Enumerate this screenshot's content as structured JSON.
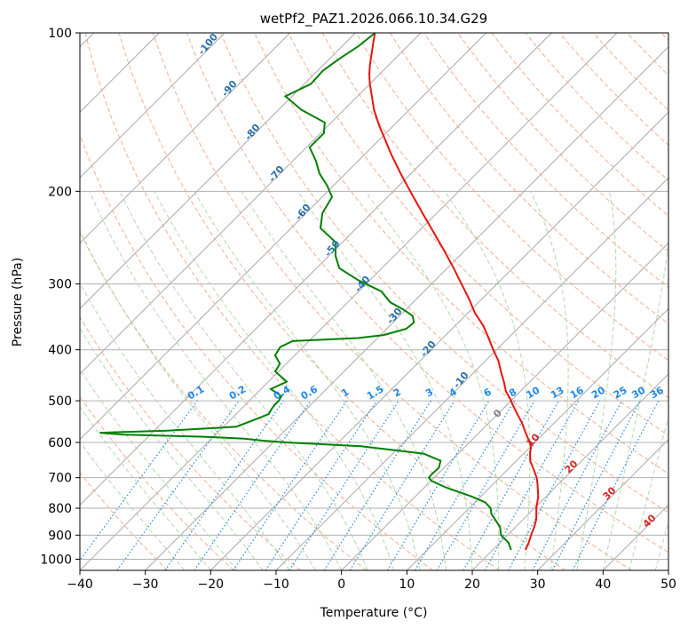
{
  "chart_data": {
    "type": "line",
    "title": "wetPf2_PAZ1.2026.066.10.34.G29",
    "xlabel": "Temperature (°C)",
    "ylabel": "Pressure (hPa)",
    "xlim": [
      -40,
      50
    ],
    "ylim": [
      1050,
      100
    ],
    "y_scale": "log",
    "x_ticks": [
      -40,
      -30,
      -20,
      -10,
      0,
      10,
      20,
      30,
      40,
      50
    ],
    "x_tick_labels": [
      "−40",
      "−30",
      "−20",
      "−10",
      "0",
      "10",
      "20",
      "30",
      "40",
      "50"
    ],
    "y_ticks": [
      100,
      200,
      300,
      400,
      500,
      600,
      700,
      800,
      900,
      1000
    ],
    "y_tick_labels": [
      "100",
      "200",
      "300",
      "400",
      "500",
      "600",
      "700",
      "800",
      "900",
      "1000"
    ],
    "grid": true,
    "skew_deg": 45,
    "series": [
      {
        "color": "#e8140c",
        "pressure": [
          960,
          930,
          900,
          870,
          840,
          800,
          760,
          720,
          700,
          680,
          650,
          630,
          610,
          590,
          570,
          550,
          530,
          510,
          495,
          480,
          460,
          440,
          420,
          400,
          380,
          360,
          340,
          320,
          300,
          280,
          260,
          240,
          220,
          200,
          185,
          170,
          160,
          150,
          140,
          130,
          125,
          120,
          115,
          110,
          105,
          100
        ],
        "temperature": [
          25.0,
          24.4,
          23.6,
          22.9,
          22.0,
          20.3,
          18.8,
          16.8,
          15.7,
          14.3,
          12.1,
          11.0,
          10.0,
          8.4,
          6.7,
          5.0,
          3.0,
          1.0,
          -0.5,
          -2.2,
          -4.0,
          -6.0,
          -8.0,
          -10.5,
          -13.0,
          -15.7,
          -19.0,
          -22.0,
          -25.4,
          -29.0,
          -33.0,
          -37.4,
          -42.2,
          -47.4,
          -51.6,
          -56.0,
          -59.0,
          -62.2,
          -65.4,
          -68.4,
          -70.0,
          -71.5,
          -72.9,
          -74.2,
          -75.6,
          -77.0
        ]
      },
      {
        "color": "#008000",
        "pressure": [
          960,
          930,
          900,
          870,
          840,
          820,
          800,
          780,
          760,
          730,
          710,
          700,
          690,
          670,
          650,
          630,
          610,
          600,
          595,
          590,
          585,
          580,
          575,
          570,
          560,
          550,
          540,
          530,
          520,
          510,
          500,
          490,
          475,
          460,
          440,
          425,
          410,
          395,
          385,
          380,
          375,
          365,
          355,
          345,
          335,
          325,
          310,
          295,
          280,
          265,
          250,
          235,
          220,
          205,
          195,
          185,
          175,
          165,
          155,
          148,
          140,
          132,
          125,
          118,
          112,
          106,
          100
        ],
        "dewpoint": [
          22.8,
          21.3,
          19.0,
          17.7,
          15.7,
          14.3,
          13.3,
          11.6,
          8.6,
          3.2,
          0.1,
          -0.8,
          -0.9,
          -0.8,
          -1.6,
          -5.3,
          -16.0,
          -28.0,
          -32.0,
          -35.0,
          -42.0,
          -54.0,
          -58.0,
          -48.0,
          -38.0,
          -37.0,
          -36.0,
          -35.0,
          -35.3,
          -35.5,
          -35.5,
          -35.8,
          -38.5,
          -37.2,
          -40.5,
          -41.0,
          -43.0,
          -43.5,
          -42.5,
          -33.0,
          -29.5,
          -27.0,
          -26.8,
          -28.0,
          -30.5,
          -33.5,
          -36.5,
          -41.8,
          -46.5,
          -49.0,
          -51.0,
          -55.5,
          -57.5,
          -58.5,
          -61.0,
          -64.0,
          -66.5,
          -69.5,
          -69.5,
          -71.0,
          -76.5,
          -81.0,
          -79.0,
          -79.2,
          -78.5,
          -77.5,
          -77.0
        ]
      }
    ],
    "dry_adiabat_labels": [
      "-100",
      "-90",
      "-80",
      "-70",
      "-60",
      "-50",
      "-40",
      "-30",
      "-20",
      "-10",
      "0"
    ],
    "moist_adiabat_labels": [
      "10",
      "20",
      "30",
      "40"
    ],
    "mixing_ratio_labels": [
      "0.1",
      "0.2",
      "0.4",
      "0.6",
      "1",
      "1.5",
      "2",
      "3",
      "4",
      "6",
      "8",
      "10",
      "13",
      "16",
      "20",
      "25",
      "30",
      "36"
    ],
    "colors": {
      "temperature": "#e8140c",
      "dewpoint": "#008000",
      "dry_adiabat": "#f4a582",
      "moist_adiabat": "#a6d7a0",
      "mixing_ratio": "#1e88e5",
      "isotherm": "#a0a0a0",
      "isobar": "#b0b0b0"
    }
  }
}
